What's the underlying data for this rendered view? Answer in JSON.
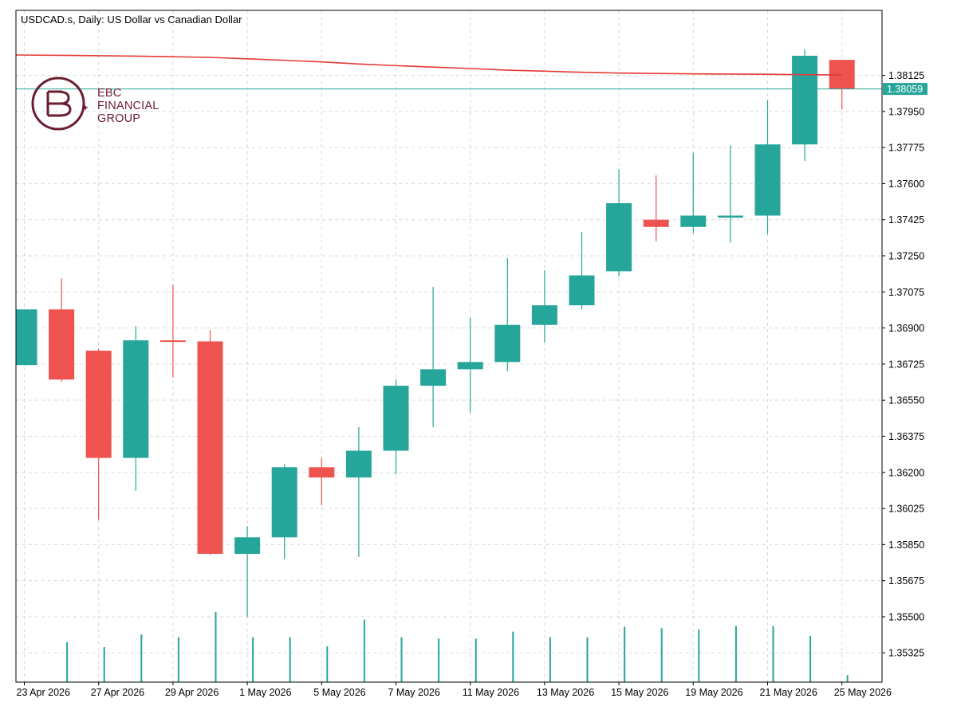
{
  "title": {
    "symbol": "USDCAD.s, Daily:",
    "description": "US Dollar vs Canadian Dollar"
  },
  "logo": {
    "line1": "EBC",
    "line2": "FINANCIAL",
    "line3": "GROUP"
  },
  "colors": {
    "bull": "#26a69a",
    "bear": "#ef5350",
    "ma": "#e53935",
    "grid": "#d9d9d9",
    "price_line": "#26a69a",
    "brand": "#6b1e30"
  },
  "chart_data": {
    "type": "candlestick",
    "symbol": "USDCAD.s",
    "timeframe": "Daily",
    "ylim": [
      1.35183,
      1.3844
    ],
    "y_ticks": [
      "1.38125",
      "1.37950",
      "1.37775",
      "1.37600",
      "1.37425",
      "1.37250",
      "1.37075",
      "1.36900",
      "1.36725",
      "1.36550",
      "1.36375",
      "1.36200",
      "1.36025",
      "1.35850",
      "1.35675",
      "1.35500",
      "1.35325"
    ],
    "current_price": "1.38059",
    "x_labels": [
      {
        "label": "23 Apr 2026",
        "index": 0
      },
      {
        "label": "27 Apr 2026",
        "index": 2
      },
      {
        "label": "29 Apr 2026",
        "index": 4
      },
      {
        "label": "1 May 2026",
        "index": 6
      },
      {
        "label": "5 May 2026",
        "index": 8
      },
      {
        "label": "7 May 2026",
        "index": 10
      },
      {
        "label": "11 May 2026",
        "index": 12
      },
      {
        "label": "13 May 2026",
        "index": 14
      },
      {
        "label": "15 May 2026",
        "index": 16
      },
      {
        "label": "19 May 2026",
        "index": 18
      },
      {
        "label": "21 May 2026",
        "index": 20
      },
      {
        "label": "25 May 2026",
        "index": 22
      }
    ],
    "candles": [
      {
        "o": 1.3672,
        "h": 1.3699,
        "l": 1.3672,
        "c": 1.3699,
        "vol": 0
      },
      {
        "o": 1.3699,
        "h": 1.3714,
        "l": 1.3664,
        "c": 1.3665,
        "vol": 0.57
      },
      {
        "o": 1.3679,
        "h": 1.368,
        "l": 1.3597,
        "c": 1.3627,
        "vol": 0.5
      },
      {
        "o": 1.3627,
        "h": 1.3691,
        "l": 1.3611,
        "c": 1.3684,
        "vol": 0.68
      },
      {
        "o": 1.3684,
        "h": 1.3711,
        "l": 1.3666,
        "c": 1.36835,
        "vol": 0.64
      },
      {
        "o": 1.36835,
        "h": 1.3689,
        "l": 1.358,
        "c": 1.35805,
        "vol": 1.0
      },
      {
        "o": 1.35805,
        "h": 1.3594,
        "l": 1.355,
        "c": 1.35885,
        "vol": 0.64
      },
      {
        "o": 1.35885,
        "h": 1.3624,
        "l": 1.3578,
        "c": 1.36225,
        "vol": 0.64
      },
      {
        "o": 1.36225,
        "h": 1.3627,
        "l": 1.3604,
        "c": 1.36175,
        "vol": 0.51
      },
      {
        "o": 1.36175,
        "h": 1.3642,
        "l": 1.3579,
        "c": 1.36305,
        "vol": 0.89
      },
      {
        "o": 1.36305,
        "h": 1.3665,
        "l": 1.3619,
        "c": 1.3662,
        "vol": 0.64
      },
      {
        "o": 1.3662,
        "h": 1.371,
        "l": 1.3642,
        "c": 1.367,
        "vol": 0.62
      },
      {
        "o": 1.367,
        "h": 1.3695,
        "l": 1.3649,
        "c": 1.36735,
        "vol": 0.62
      },
      {
        "o": 1.36735,
        "h": 1.3724,
        "l": 1.3669,
        "c": 1.36915,
        "vol": 0.72
      },
      {
        "o": 1.36915,
        "h": 1.3718,
        "l": 1.3683,
        "c": 1.3701,
        "vol": 0.64
      },
      {
        "o": 1.3701,
        "h": 1.37365,
        "l": 1.3699,
        "c": 1.37155,
        "vol": 0.64
      },
      {
        "o": 1.37175,
        "h": 1.3767,
        "l": 1.3715,
        "c": 1.37505,
        "vol": 0.79
      },
      {
        "o": 1.37425,
        "h": 1.3764,
        "l": 1.3732,
        "c": 1.3739,
        "vol": 0.77
      },
      {
        "o": 1.3739,
        "h": 1.3775,
        "l": 1.3736,
        "c": 1.37445,
        "vol": 0.75
      },
      {
        "o": 1.37435,
        "h": 1.37785,
        "l": 1.37315,
        "c": 1.37445,
        "vol": 0.8
      },
      {
        "o": 1.37445,
        "h": 1.38005,
        "l": 1.37355,
        "c": 1.3779,
        "vol": 0.8
      },
      {
        "o": 1.3779,
        "h": 1.3825,
        "l": 1.3771,
        "c": 1.3822,
        "vol": 0.66
      },
      {
        "o": 1.382,
        "h": 1.382,
        "l": 1.3796,
        "c": 1.38059,
        "vol": 0.1
      }
    ],
    "moving_average": [
      1.38225,
      1.38222,
      1.3822,
      1.38218,
      1.38215,
      1.38212,
      1.38205,
      1.38198,
      1.3819,
      1.3818,
      1.38172,
      1.38165,
      1.38158,
      1.3815,
      1.38145,
      1.3814,
      1.38136,
      1.38134,
      1.38132,
      1.38131,
      1.3813,
      1.38128,
      1.38127
    ]
  }
}
